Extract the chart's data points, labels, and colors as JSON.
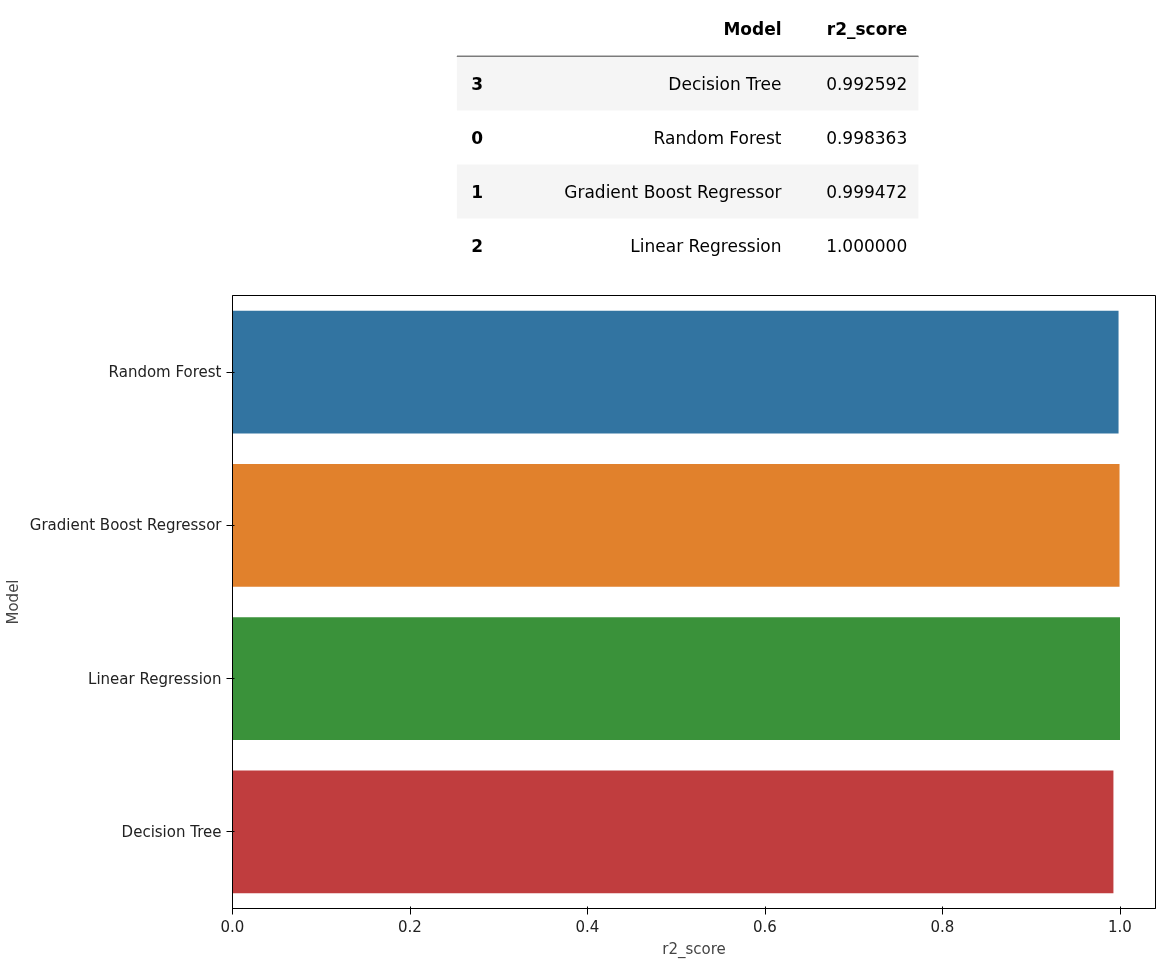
{
  "chart_data": [
    {
      "type": "other",
      "annotations": [
        "Model",
        "r2_score",
        "3",
        "Decision Tree",
        "0.992592",
        "0",
        "Random Forest",
        "0.998363",
        "1",
        "Gradient Boost Regressor",
        "0.999472",
        "2",
        "Linear Regression",
        "1.000000"
      ]
    },
    {
      "type": "bar",
      "orientation": "horizontal",
      "xlabel": "r2_score",
      "ylabel": "Model",
      "categories": [
        "Random Forest",
        "Gradient Boost Regressor",
        "Linear Regression",
        "Decision Tree"
      ],
      "values": [
        0.998363,
        0.999472,
        1.0,
        0.992592
      ],
      "colors": [
        "#3274a1",
        "#e1812c",
        "#3a923a",
        "#c03d3e"
      ],
      "xlim": [
        0,
        1.04
      ],
      "xticks": [
        {
          "value": 0,
          "label": "0.0"
        },
        {
          "value": 0.2,
          "label": "0.2"
        },
        {
          "value": 0.4,
          "label": "0.4"
        },
        {
          "value": 0.6,
          "label": "0.6"
        },
        {
          "value": 0.8,
          "label": "0.8"
        },
        {
          "value": 1,
          "label": "1.0"
        }
      ],
      "grid": false
    }
  ]
}
